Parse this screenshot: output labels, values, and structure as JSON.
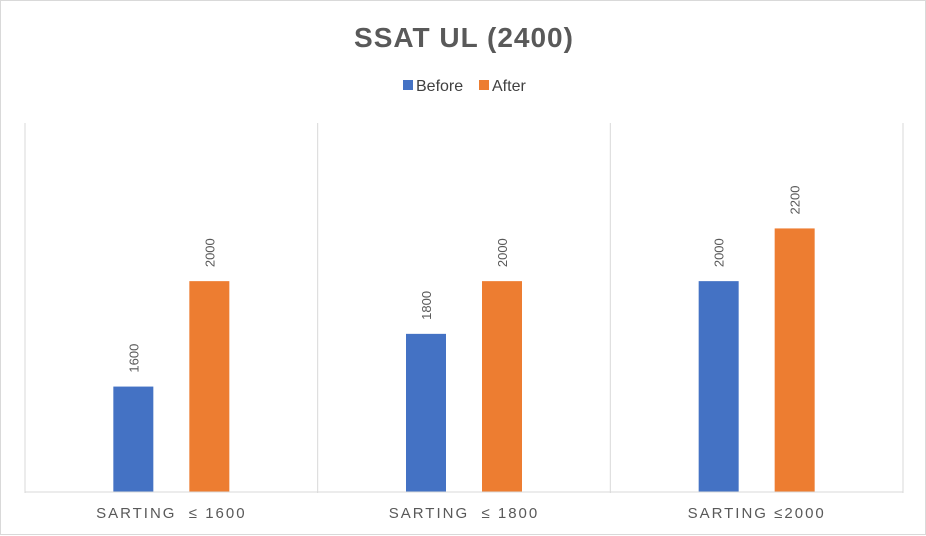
{
  "chart_data": {
    "type": "bar",
    "title": "SSAT UL (2400)",
    "categories": [
      "SARTING  ≤ 1600",
      "SARTING  ≤ 1800",
      "SARTING ≤2000"
    ],
    "series": [
      {
        "name": "Before",
        "values": [
          1600,
          1800,
          2000
        ],
        "color": "#4472C4"
      },
      {
        "name": "After",
        "values": [
          2000,
          2000,
          2200
        ],
        "color": "#ED7D31"
      }
    ],
    "ylim": [
      1200,
      2600
    ],
    "grid": "vertical category separators",
    "legend": "top-center",
    "data_labels": "rotated vertical above bars",
    "axis_color": "#d9d9d9"
  }
}
